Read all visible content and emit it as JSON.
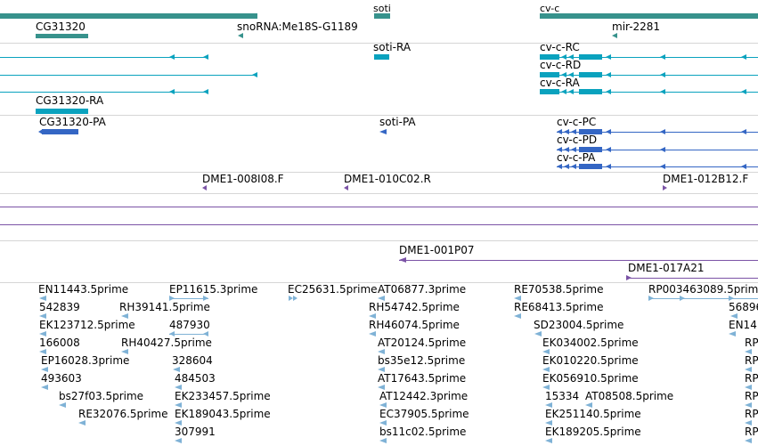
{
  "colors": {
    "gene": "#37928c",
    "transcript": "#0aa2be",
    "protein": "#3466c4",
    "clone": "#7b53a6",
    "est": "#7fb2d6",
    "separator": "#d6d6d6"
  },
  "tracks": {
    "genes": {
      "labels": [
        "soti",
        "cv-c",
        "CG31320",
        "snoRNA:Me18S-G1189",
        "mir-2281"
      ]
    },
    "transcripts": {
      "labels": [
        "soti-RA",
        "cv-c-RC",
        "cv-c-RD",
        "cv-c-RA",
        "CG31320-RA"
      ]
    },
    "proteins": {
      "labels": [
        "CG31320-PA",
        "soti-PA",
        "cv-c-PC",
        "cv-c-PD",
        "cv-c-PA"
      ]
    },
    "clones_ends": {
      "labels": [
        "DME1-008I08.F",
        "DME1-010C02.R",
        "DME1-012B12.F"
      ]
    },
    "clones_full": {
      "labels": [
        "DME1-001P07",
        "DME1-017A21"
      ]
    },
    "ests": {
      "labels": [
        "EN11443.5prime",
        "EP11615.3prime",
        "EC25631.5prime",
        "AT06877.3prime",
        "RE70538.5prime",
        "RP003463089.5prime",
        "542839",
        "RH39141.5prime",
        "RH54742.5prime",
        "RE68413.5prime",
        "56896",
        "EK123712.5prime",
        "487930",
        "RH46074.5prime",
        "SD23004.5prime",
        "EN14",
        "166008",
        "RH40427.5prime",
        "AT20124.5prime",
        "EK034002.5prime",
        "RP",
        "EP16028.3prime",
        "328604",
        "bs35e12.5prime",
        "EK010220.5prime",
        "RP",
        "493603",
        "484503",
        "AT17643.5prime",
        "EK056910.5prime",
        "RP",
        "bs27f03.5prime",
        "EK233457.5prime",
        "AT12442.3prime",
        "15334",
        "AT08508.5prime",
        "RP",
        "RE32076.5prime",
        "EK189043.5prime",
        "EC37905.5prime",
        "EK251140.5prime",
        "RP",
        "307991",
        "bs11c02.5prime",
        "EK189205.5prime",
        "RP"
      ]
    }
  }
}
